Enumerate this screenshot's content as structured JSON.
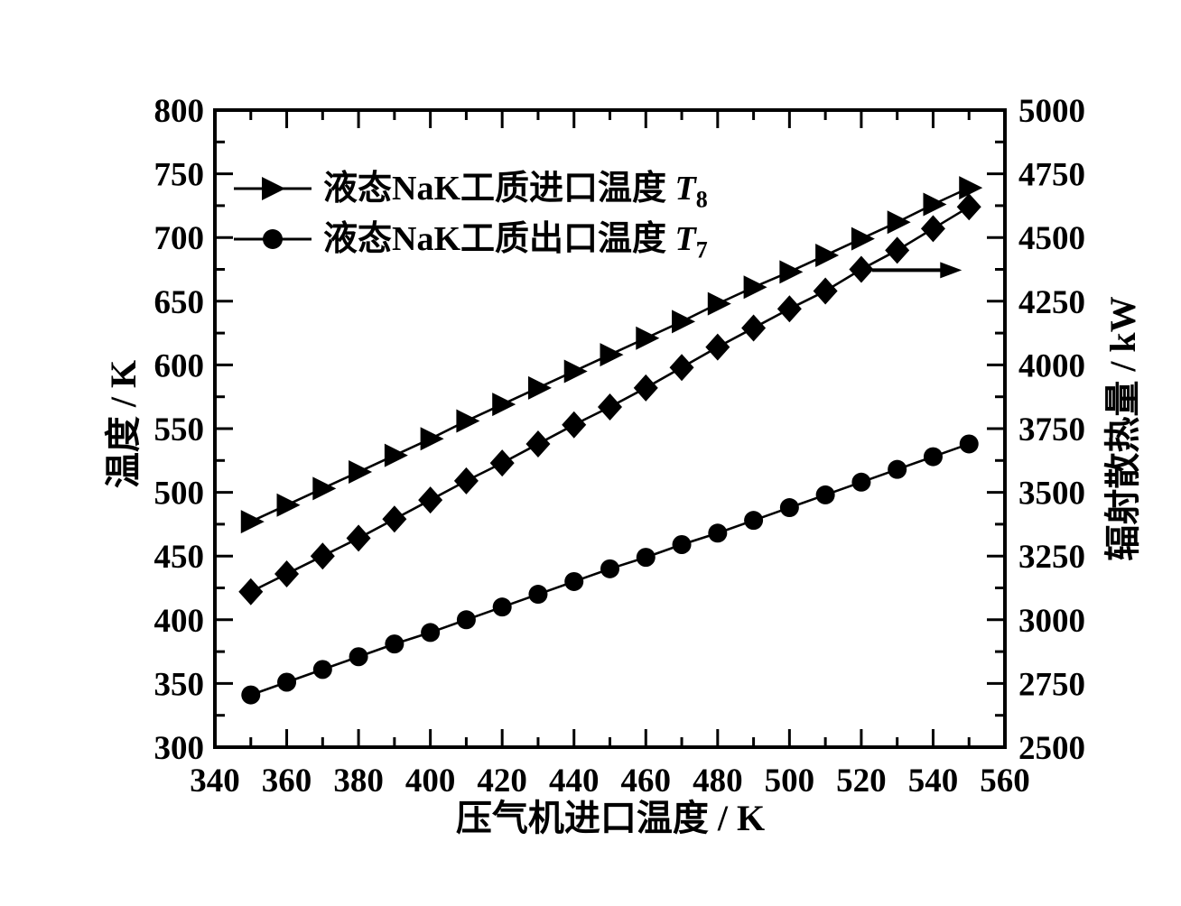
{
  "figure": {
    "background_color": "#ffffff",
    "foreground_color": "#000000"
  },
  "chart_data": {
    "type": "line",
    "title": "",
    "grid": false,
    "tick_direction": "in",
    "mirrored_ticks": true,
    "x": [
      350,
      360,
      370,
      380,
      390,
      400,
      410,
      420,
      430,
      440,
      450,
      460,
      470,
      480,
      490,
      500,
      510,
      520,
      530,
      540,
      550
    ],
    "x_axis": {
      "label": "压气机进口温度 / K",
      "min": 340,
      "max": 560,
      "major_ticks": [
        340,
        360,
        380,
        400,
        420,
        440,
        460,
        480,
        500,
        520,
        540,
        560
      ],
      "minor_step": 10
    },
    "y_left_axis": {
      "label": "温度 / K",
      "min": 300,
      "max": 800,
      "major_ticks": [
        300,
        350,
        400,
        450,
        500,
        550,
        600,
        650,
        700,
        750,
        800
      ],
      "minor_step": 25
    },
    "y_right_axis": {
      "label": "辐射散热量 / kW",
      "min": 2500,
      "max": 5000,
      "major_ticks": [
        2500,
        2750,
        3000,
        3250,
        3500,
        3750,
        4000,
        4250,
        4500,
        4750,
        5000
      ],
      "minor_step": 125
    },
    "series": [
      {
        "name": "液态NaK工质进口温度 T8",
        "marker": "triangle-right",
        "axis": "left",
        "color": "#000000",
        "values": [
          477,
          490,
          503,
          516,
          529,
          542,
          556,
          569,
          582,
          595,
          608,
          621,
          634,
          648,
          661,
          673,
          686,
          699,
          712,
          726,
          739
        ]
      },
      {
        "name": "液态NaK工质出口温度 T7",
        "marker": "circle",
        "axis": "left",
        "color": "#000000",
        "values": [
          341,
          351,
          361,
          371,
          381,
          390,
          400,
          410,
          420,
          430,
          440,
          449,
          459,
          468,
          478,
          488,
          498,
          508,
          518,
          528,
          538
        ]
      },
      {
        "name": "辐射散热量",
        "marker": "diamond",
        "axis": "right",
        "color": "#000000",
        "values": [
          3110,
          3180,
          3250,
          3320,
          3395,
          3470,
          3545,
          3615,
          3690,
          3765,
          3835,
          3910,
          3990,
          4070,
          4145,
          4220,
          4290,
          4375,
          4450,
          4535,
          4620
        ]
      }
    ],
    "legend": {
      "position": "top-left-inside",
      "items": [
        {
          "marker": "triangle-right",
          "label": "液态NaK工质进口温度 ",
          "symbol": "T",
          "subscript": "8"
        },
        {
          "marker": "circle",
          "label": "液态NaK工质出口温度 ",
          "symbol": "T",
          "subscript": "7"
        }
      ]
    },
    "annotations": [
      {
        "type": "arrow-right",
        "x_from": 523,
        "x_to": 548,
        "y": 4372,
        "y_axis": "right",
        "meaning": "diamond series reads on right axis"
      }
    ]
  }
}
